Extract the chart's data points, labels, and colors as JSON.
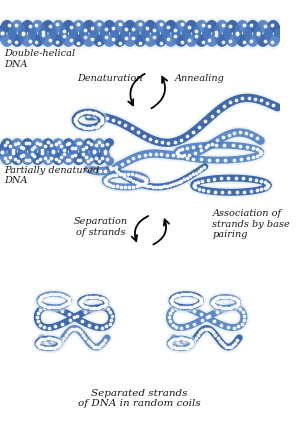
{
  "background_color": "#ffffff",
  "dna_dark": "#2855a0",
  "dna_mid": "#4a7abf",
  "dna_light": "#b8cfe8",
  "dna_vlight": "#d8e8f5",
  "text_color": "#1a1a1a",
  "arrow_color": "#111111",
  "labels": {
    "double_helical": "Double-helical\nDNA",
    "denaturation": "Denaturation",
    "annealing": "Annealing",
    "partially": "Partially denatured\nDNA",
    "separation": "Separation\nof strands",
    "association": "Association of\nstrands by base\npairing",
    "separated": "Separated strands\nof DNA in random coils"
  },
  "figsize": [
    3.01,
    4.28
  ],
  "dpi": 100
}
